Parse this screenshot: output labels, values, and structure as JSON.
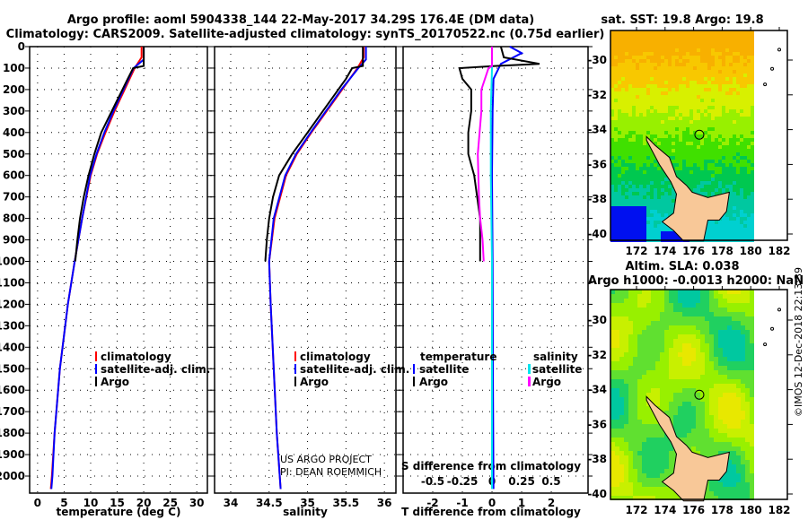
{
  "title": {
    "line1": "Argo profile: aoml 5904338_144 22-May-2017 34.29S 176.4E (DM data)",
    "line2": "Climatology: CARS2009. Satellite-adjusted climatology: synTS_20170522.nc (0.75d earlier)"
  },
  "colors": {
    "argo": "#000000",
    "climatology": "#ff0000",
    "satellite": "#0000ff",
    "sal_satellite": "#00e5ee",
    "sal_argo": "#ff00ff"
  },
  "notes": {
    "project": "US ARGO PROJECT",
    "pi": "PI: DEAN ROEMMICH",
    "stamp": "©IMOS 12-Dec-2018 22:13:39"
  },
  "chart_data": [
    {
      "type": "line",
      "id": "temperature",
      "xlabel": "temperature (deg C)",
      "ylabel": "depth",
      "xlim": [
        -1.5,
        32
      ],
      "ylim": [
        2080,
        0
      ],
      "xticks": [
        "0",
        "5",
        "10",
        "15",
        "20",
        "25",
        "30"
      ],
      "xtick_values": [
        0,
        5,
        10,
        15,
        20,
        25,
        30
      ],
      "yticks": [
        "0",
        "100",
        "200",
        "300",
        "400",
        "500",
        "600",
        "700",
        "800",
        "900",
        "1000",
        "1100",
        "1200",
        "1300",
        "1400",
        "1500",
        "1600",
        "1700",
        "1800",
        "1900",
        "2000"
      ],
      "legend": [
        "climatology",
        "satellite-adj. clim.",
        "Argo"
      ],
      "series": [
        {
          "name": "climatology",
          "color": "#ff0000",
          "depth": [
            0,
            50,
            100,
            200,
            300,
            400,
            500,
            600,
            800,
            1000,
            1200,
            1500,
            1800,
            2000,
            2060
          ],
          "values": [
            19.6,
            19.6,
            18.3,
            16.4,
            14.5,
            12.8,
            11.2,
            10.0,
            8.4,
            7.0,
            5.7,
            4.2,
            3.2,
            2.7,
            2.5
          ]
        },
        {
          "name": "satellite-adj. clim.",
          "color": "#0000ff",
          "depth": [
            0,
            60,
            100,
            200,
            300,
            400,
            500,
            600,
            800,
            1000,
            1200,
            1500,
            1800,
            2000,
            2060
          ],
          "values": [
            20.0,
            20.0,
            18.1,
            16.2,
            14.3,
            12.6,
            11.1,
            9.9,
            8.4,
            7.0,
            5.7,
            4.2,
            3.2,
            2.8,
            2.6
          ]
        },
        {
          "name": "Argo",
          "color": "#000000",
          "depth": [
            0,
            90,
            100,
            150,
            200,
            300,
            400,
            500,
            600,
            700,
            800,
            900,
            1000
          ],
          "values": [
            20.0,
            20.0,
            18.0,
            17.0,
            16.0,
            14.0,
            12.0,
            10.7,
            9.6,
            8.7,
            8.0,
            7.5,
            7.1
          ]
        }
      ]
    },
    {
      "type": "line",
      "id": "salinity",
      "xlabel": "salinity",
      "ylim": [
        2080,
        0
      ],
      "xlim": [
        33.79,
        36.15
      ],
      "xticks": [
        "34",
        "34.5",
        "35",
        "35.5",
        "36"
      ],
      "xtick_values": [
        34,
        34.5,
        35,
        35.5,
        36
      ],
      "legend": [
        "climatology",
        "satellite-adj. clim.",
        "Argo"
      ],
      "series": [
        {
          "name": "climatology",
          "color": "#ff0000",
          "depth": [
            0,
            50,
            100,
            200,
            300,
            400,
            500,
            600,
            800,
            1000,
            1200,
            1500,
            1800,
            2060
          ],
          "values": [
            35.73,
            35.73,
            35.65,
            35.45,
            35.25,
            35.05,
            34.86,
            34.72,
            34.57,
            34.5,
            34.52,
            34.56,
            34.6,
            34.65
          ]
        },
        {
          "name": "satellite-adj. clim.",
          "color": "#0000ff",
          "depth": [
            0,
            60,
            100,
            200,
            300,
            400,
            500,
            600,
            800,
            1000,
            1200,
            1500,
            1800,
            2060
          ],
          "values": [
            35.76,
            35.76,
            35.66,
            35.44,
            35.24,
            35.04,
            34.85,
            34.71,
            34.56,
            34.5,
            34.52,
            34.56,
            34.6,
            34.65
          ]
        },
        {
          "name": "Argo",
          "color": "#000000",
          "depth": [
            0,
            90,
            100,
            150,
            200,
            300,
            400,
            500,
            600,
            700,
            800,
            900,
            1000
          ],
          "values": [
            35.72,
            35.72,
            35.58,
            35.5,
            35.4,
            35.2,
            35.0,
            34.8,
            34.63,
            34.55,
            34.5,
            34.47,
            34.45
          ]
        }
      ]
    },
    {
      "type": "line",
      "id": "difference",
      "xlabel": "T difference from climatology",
      "x2label": "S difference from climatology",
      "xlim": [
        -3,
        3.24
      ],
      "ylim": [
        2080,
        0
      ],
      "xticks": [
        "-2",
        "-1",
        "0",
        "1",
        "2"
      ],
      "xtick_values": [
        -2,
        -1,
        0,
        1,
        2
      ],
      "x2ticks": [
        "-0.5",
        "-0.25",
        "0",
        "0.25",
        "0.5"
      ],
      "x2tick_values": [
        -0.5,
        -0.25,
        0,
        0.25,
        0.5
      ],
      "legend": {
        "temperature_title": "temperature",
        "salinity_title": "salinity",
        "temperature": [
          "satellite",
          "Argo"
        ],
        "salinity": [
          "satellite",
          "Argo"
        ]
      },
      "series": [
        {
          "name": "T satellite",
          "axis": "T",
          "color": "#0000ff",
          "depth": [
            0,
            30,
            80,
            150,
            300,
            600,
            1000,
            1500,
            2060
          ],
          "values": [
            0.6,
            1.0,
            0.3,
            0.05,
            0.02,
            0.0,
            0.02,
            0.03,
            0.05
          ]
        },
        {
          "name": "T Argo",
          "axis": "T",
          "color": "#000000",
          "depth": [
            0,
            50,
            80,
            90,
            100,
            150,
            200,
            300,
            400,
            500,
            600,
            700,
            800,
            900,
            1000
          ],
          "values": [
            0.3,
            0.4,
            1.6,
            0.1,
            -1.1,
            -1.0,
            -0.7,
            -0.7,
            -0.8,
            -0.8,
            -0.6,
            -0.5,
            -0.4,
            -0.4,
            -0.4
          ]
        },
        {
          "name": "S satellite",
          "axis": "S",
          "color": "#00e5ee",
          "depth": [
            0,
            100,
            300,
            600,
            1000,
            1500,
            2060
          ],
          "values": [
            0.0,
            0.0,
            -0.01,
            -0.01,
            0.0,
            0.0,
            0.0
          ]
        },
        {
          "name": "S Argo",
          "axis": "S",
          "color": "#ff00ff",
          "depth": [
            0,
            90,
            100,
            200,
            300,
            500,
            700,
            800,
            900,
            1000
          ],
          "values": [
            0.0,
            0.0,
            -0.03,
            -0.09,
            -0.09,
            -0.12,
            -0.11,
            -0.1,
            -0.08,
            -0.07
          ]
        }
      ]
    }
  ],
  "maps": [
    {
      "id": "sst",
      "title": "sat. SST: 19.8 Argo: 19.8",
      "xticks": [
        "172",
        "174",
        "176",
        "178",
        "180",
        "182"
      ],
      "yticks": [
        "-30",
        "-32",
        "-34",
        "-36",
        "-38",
        "-40"
      ],
      "float_lon": 176.4,
      "float_lat": -34.29
    },
    {
      "id": "sla",
      "title1": "Altim. SLA: 0.038",
      "title2": "Argo h1000: -0.0013 h2000: NaN",
      "xticks": [
        "172",
        "174",
        "176",
        "178",
        "180",
        "182"
      ],
      "yticks": [
        "-30",
        "-32",
        "-34",
        "-36",
        "-38",
        "-40"
      ],
      "float_lon": 176.4,
      "float_lat": -34.29
    }
  ]
}
